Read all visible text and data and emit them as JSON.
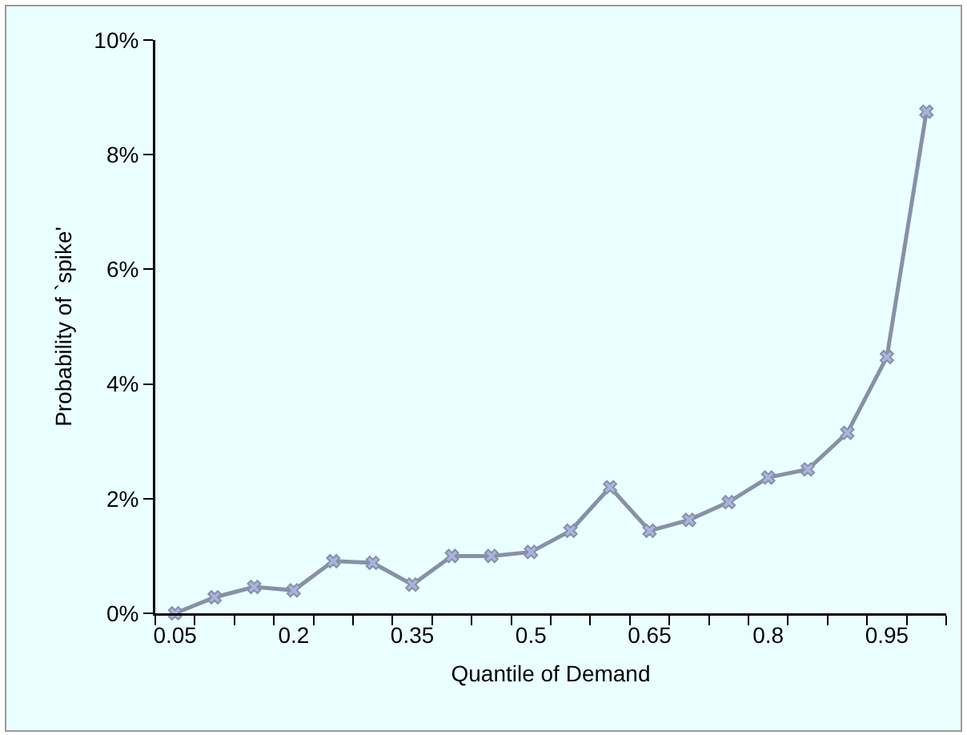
{
  "chart_data": {
    "type": "line",
    "xlabel": "Quantile of Demand",
    "ylabel": "Probability of `spike'",
    "categories": [
      "0.05",
      null,
      null,
      "0.2",
      null,
      null,
      "0.35",
      null,
      null,
      "0.5",
      null,
      null,
      "0.65",
      null,
      null,
      "0.8",
      null,
      null,
      "0.95",
      null
    ],
    "series": [
      {
        "color": "#8890a8",
        "values": [
          0,
          0.28,
          0.46,
          0.4,
          0.91,
          0.88,
          0.5,
          1.0,
          1.0,
          1.07,
          1.44,
          2.2,
          1.44,
          1.63,
          1.94,
          2.37,
          2.51,
          3.15,
          4.47,
          8.75
        ]
      }
    ],
    "ylim": [
      0,
      10
    ],
    "yticks": [
      {
        "value": 0,
        "label": "0%"
      },
      {
        "value": 2,
        "label": "2%"
      },
      {
        "value": 4,
        "label": "4%"
      },
      {
        "value": 6,
        "label": "6%"
      },
      {
        "value": 8,
        "label": "8%"
      },
      {
        "value": 10,
        "label": "10%"
      }
    ],
    "grid": false,
    "marker": "cross",
    "line_style": "solid"
  }
}
